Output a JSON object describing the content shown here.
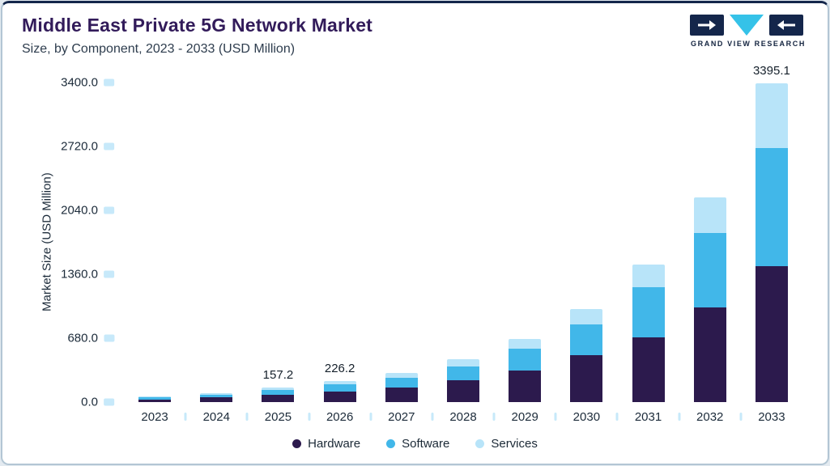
{
  "header": {
    "title": "Middle East Private 5G Network Market",
    "subtitle": "Size, by Component, 2023 - 2033 (USD Million)",
    "logo_text": "GRAND VIEW RESEARCH"
  },
  "colors": {
    "hardware": "#2c1a4d",
    "software": "#41b7e9",
    "services": "#b8e4f9",
    "title": "#321b5a",
    "tick_mark": "#c7e9fa",
    "top_accent": "#14264b"
  },
  "chart_data": {
    "type": "bar",
    "stacked": true,
    "title": "Middle East Private 5G Network Market",
    "subtitle": "Size, by Component, 2023 - 2033 (USD Million)",
    "ylabel": "Market Size (USD Million)",
    "xlabel": "",
    "ylim": [
      0,
      3400
    ],
    "yticks": [
      0,
      680,
      1360,
      2040,
      2720,
      3400
    ],
    "ytick_labels": [
      "0.0",
      "680.0",
      "1360.0",
      "2040.0",
      "2720.0",
      "3400.0"
    ],
    "categories": [
      "2023",
      "2024",
      "2025",
      "2026",
      "2027",
      "2028",
      "2029",
      "2030",
      "2031",
      "2032",
      "2033"
    ],
    "series": [
      {
        "name": "Hardware",
        "color": "#2c1a4d",
        "values": [
          30,
          48,
          80,
          115,
          158,
          232,
          340,
          500,
          690,
          1010,
          1450
        ]
      },
      {
        "name": "Software",
        "color": "#41b7e9",
        "values": [
          20,
          32,
          52,
          75,
          102,
          150,
          225,
          330,
          530,
          790,
          1250
        ]
      },
      {
        "name": "Services",
        "color": "#b8e4f9",
        "values": [
          10,
          15,
          25.2,
          36.2,
          50,
          73,
          105,
          160,
          240,
          380,
          695.1
        ]
      }
    ],
    "totals": [
      60,
      95,
      157.2,
      226.2,
      310,
      455,
      670,
      990,
      1460,
      2180,
      3395.1
    ],
    "annotations": {
      "2025": "157.2",
      "2026": "226.2",
      "2033": "3395.1"
    },
    "legend": [
      "Hardware",
      "Software",
      "Services"
    ],
    "legend_position": "bottom",
    "grid": false
  }
}
